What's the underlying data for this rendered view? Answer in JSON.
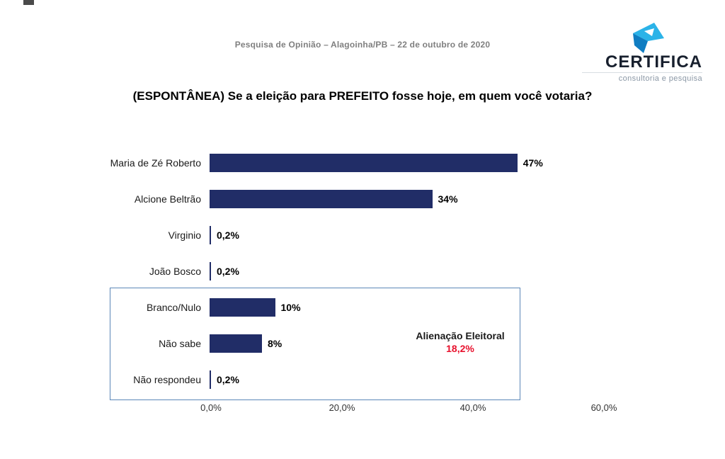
{
  "header": {
    "subtitle": "Pesquisa de Opinião – Alagoinha/PB – 22 de outubro de 2020"
  },
  "logo": {
    "name": "CERTIFICA",
    "tagline": "consultoria e pesquisa",
    "icon_color_light": "#2bb3e8",
    "icon_color_dark": "#0f7dc2",
    "text_color": "#18202e"
  },
  "title": "(ESPONTÂNEA) Se a eleição para PREFEITO fosse hoje, em quem você votaria?",
  "chart_data": {
    "type": "bar",
    "orientation": "horizontal",
    "categories": [
      "Maria de Zé Roberto",
      "Alcione Beltrão",
      "Virginio",
      "João Bosco",
      "Branco/Nulo",
      "Não sabe",
      "Não respondeu"
    ],
    "values": [
      47,
      34,
      0.2,
      0.2,
      10,
      8,
      0.2
    ],
    "value_labels": [
      "47%",
      "34%",
      "0,2%",
      "0,2%",
      "10%",
      "8%",
      "0,2%"
    ],
    "bar_color": "#212d67",
    "xlim": [
      0,
      60
    ],
    "x_ticks": [
      {
        "value": 0,
        "label": "0,0%"
      },
      {
        "value": 20,
        "label": "20,0%"
      },
      {
        "value": 40,
        "label": "40,0%"
      },
      {
        "value": 60,
        "label": "60,0%"
      }
    ],
    "grid": false,
    "annotation": {
      "label": "Alienação Eleitoral",
      "value": "18,2%",
      "value_color": "#e8112d",
      "grouped_categories": [
        "Branco/Nulo",
        "Não sabe",
        "Não respondeu"
      ]
    }
  }
}
